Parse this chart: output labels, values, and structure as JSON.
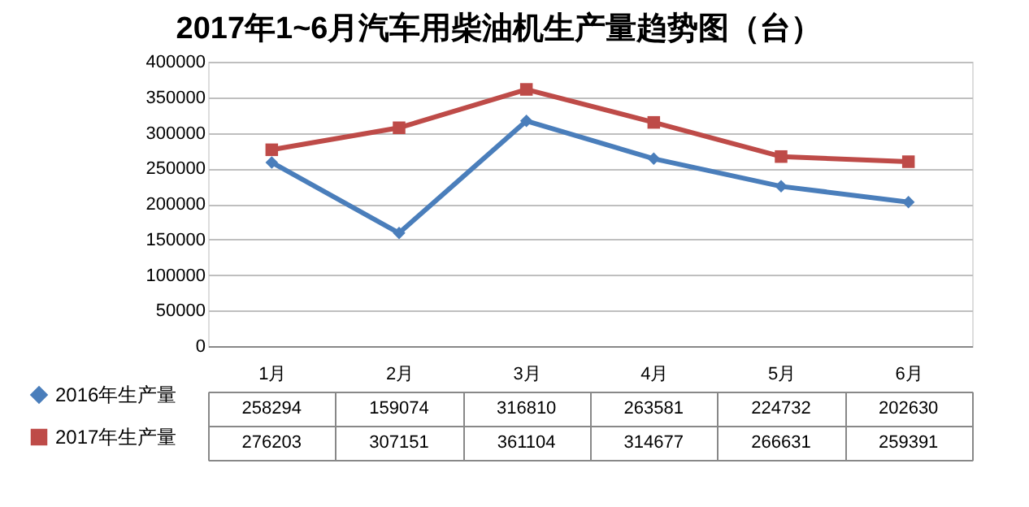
{
  "chart_data": {
    "type": "line",
    "title": "2017年1~6月汽车用柴油机生产量趋势图（台）",
    "categories": [
      "1月",
      "2月",
      "3月",
      "4月",
      "5月",
      "6月"
    ],
    "series": [
      {
        "name": "2016年生产量",
        "color": "#4a7ebb",
        "marker": "diamond",
        "values": [
          258294,
          159074,
          316810,
          263581,
          224732,
          202630
        ]
      },
      {
        "name": "2017年生产量",
        "color": "#be4b48",
        "marker": "square",
        "values": [
          276203,
          307151,
          361104,
          314677,
          266631,
          259391
        ]
      }
    ],
    "ylim": [
      0,
      400000
    ],
    "yticks": [
      0,
      50000,
      100000,
      150000,
      200000,
      250000,
      300000,
      350000,
      400000
    ],
    "grid": "y",
    "data_labels": true,
    "legend": "bottom left"
  }
}
